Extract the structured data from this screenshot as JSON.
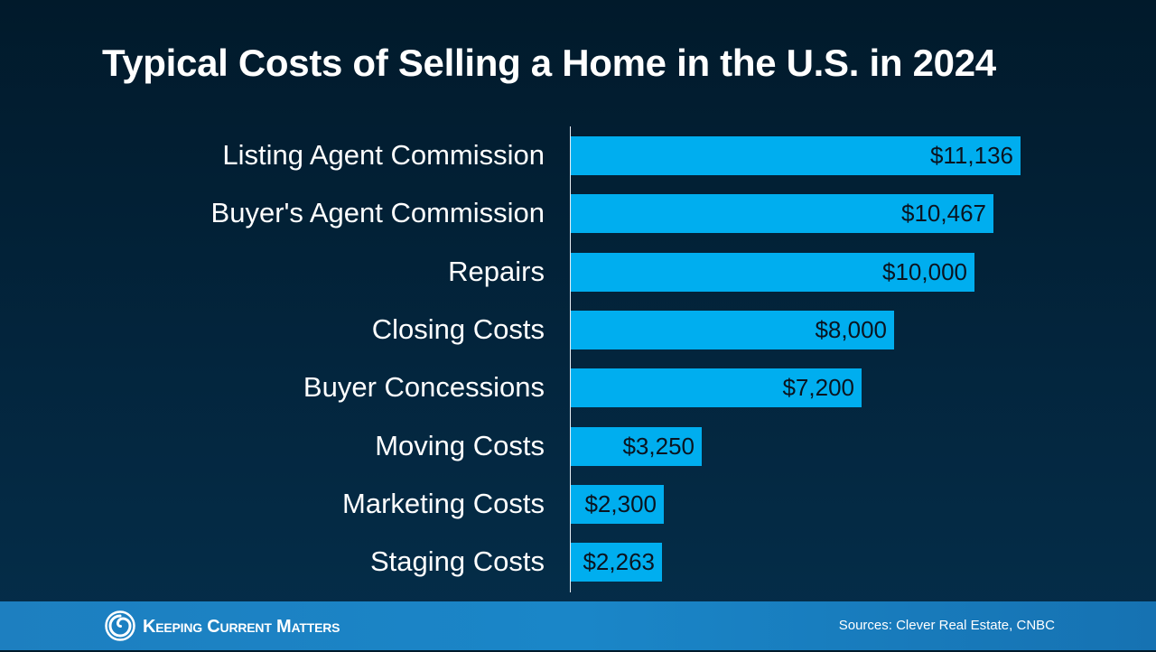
{
  "title": "Typical Costs of Selling a Home in the U.S. in 2024",
  "chart_data": {
    "type": "bar",
    "orientation": "horizontal",
    "categories": [
      "Listing Agent Commission",
      "Buyer's Agent Commission",
      "Repairs",
      "Closing Costs",
      "Buyer Concessions",
      "Moving Costs",
      "Marketing Costs",
      "Staging Costs"
    ],
    "values": [
      11136,
      10467,
      10000,
      8000,
      7200,
      3250,
      2300,
      2263
    ],
    "data_labels": [
      "$11,136",
      "$10,467",
      "$10,000",
      "$8,000",
      "$7,200",
      "$3,250",
      "$2,300",
      "$2,263"
    ],
    "xlim": [
      0,
      14000
    ],
    "grid": false,
    "legend": "none",
    "bar_color": "#00aeef"
  },
  "footer": {
    "logo_text": "Keeping Current Matters",
    "logo_icon": "spiral-logo-icon",
    "sources": "Sources: Clever Real Estate, CNBC"
  },
  "colors": {
    "background": "#011a2b",
    "footer": "#1a86c8",
    "bar": "#00aeef",
    "text": "#ffffff"
  }
}
